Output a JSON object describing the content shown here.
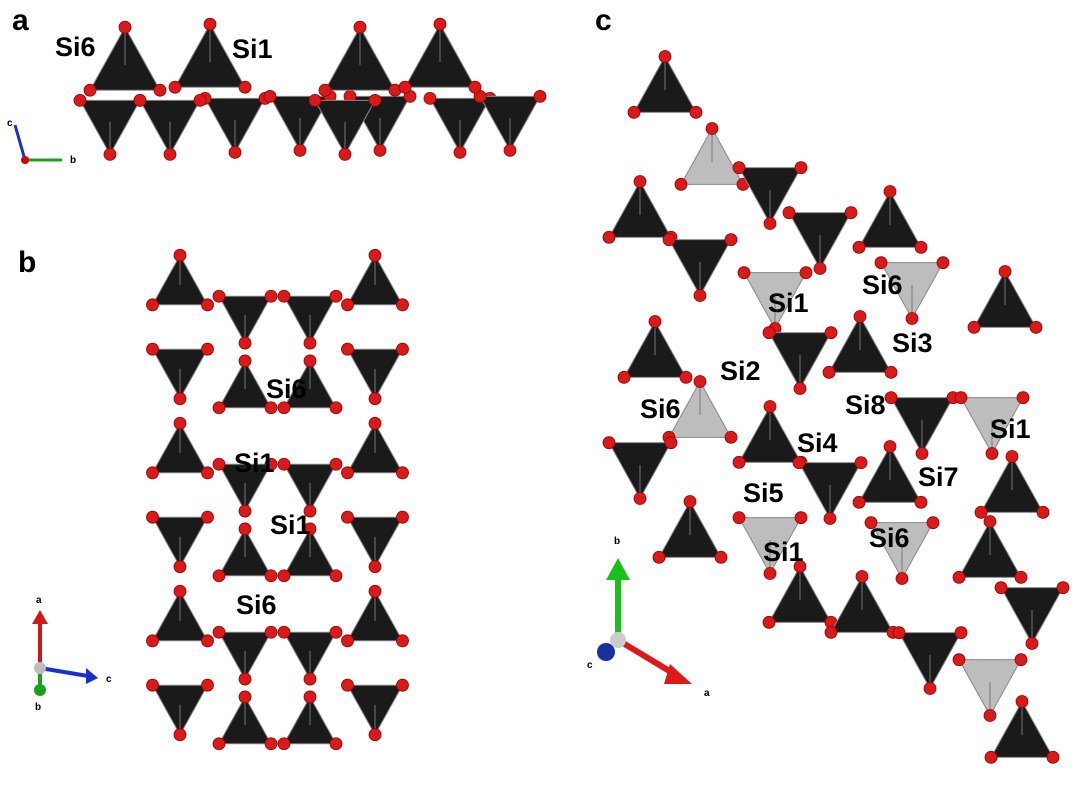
{
  "panels": [
    {
      "label": "a",
      "site_labels": [
        "Si6",
        "Si1"
      ],
      "axes": [
        "c",
        "b"
      ]
    },
    {
      "label": "b",
      "site_labels": [
        "Si6",
        "Si1",
        "Si1",
        "Si6"
      ],
      "axes": [
        "a",
        "c",
        "b"
      ]
    },
    {
      "label": "c",
      "site_labels": [
        "Si1",
        "Si6",
        "Si3",
        "Si2",
        "Si8",
        "Si6",
        "Si1",
        "Si4",
        "Si7",
        "Si5",
        "Si6",
        "Si1"
      ],
      "axes": [
        "b",
        "c",
        "a"
      ]
    }
  ]
}
